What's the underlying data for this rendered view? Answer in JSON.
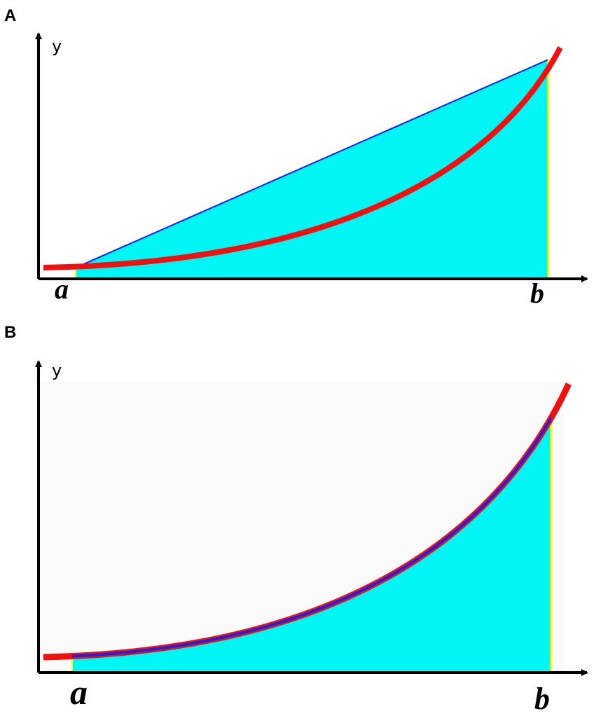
{
  "panels": [
    {
      "label": "A",
      "y_axis_label": "y",
      "start_label": "a",
      "end_label": "b"
    },
    {
      "label": "B",
      "y_axis_label": "y",
      "start_label": "a",
      "end_label": "b"
    }
  ]
}
